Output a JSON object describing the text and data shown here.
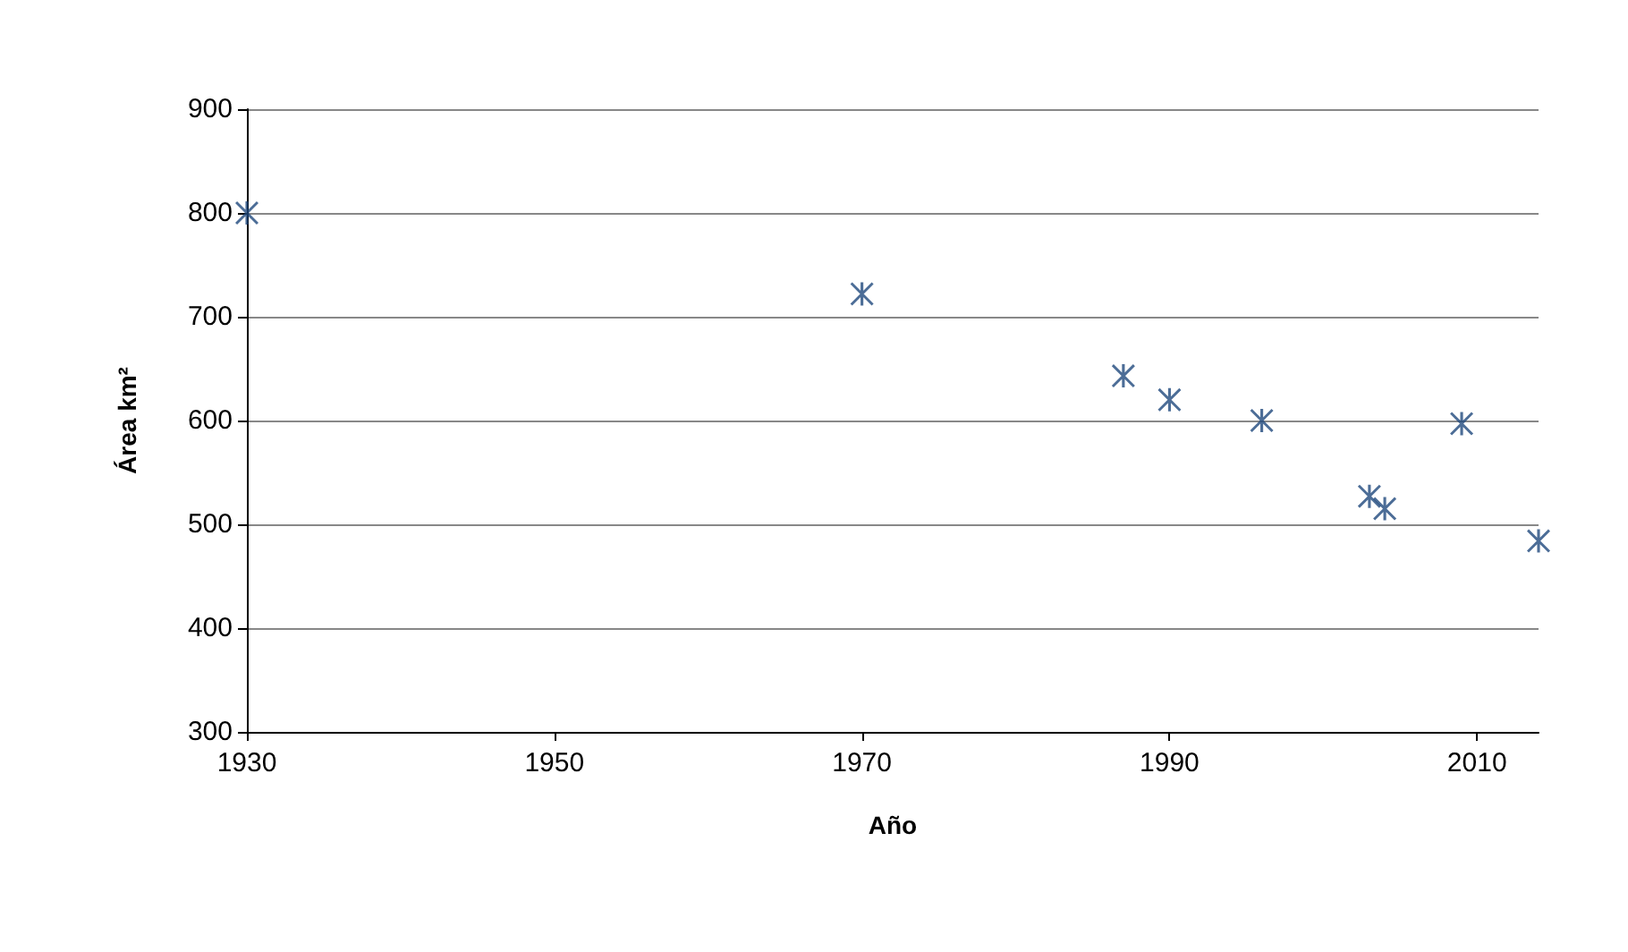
{
  "chart_data": {
    "type": "scatter",
    "xlabel": "Año",
    "ylabel": "Área km²",
    "x": [
      1930,
      1970,
      1987,
      1990,
      1996,
      2003,
      2004,
      2009,
      2014
    ],
    "series": [
      {
        "color": "#1f497d",
        "values": [
          800,
          722,
          643,
          620,
          600,
          527,
          515,
          597,
          484
        ]
      }
    ],
    "xlim": [
      1930,
      2014
    ],
    "xticks": [
      1930,
      1950,
      1970,
      1990,
      2010
    ],
    "ylim": [
      300,
      900
    ],
    "yticks": [
      300,
      400,
      500,
      600,
      700,
      800,
      900
    ],
    "grid": "y",
    "marker": "cross"
  }
}
